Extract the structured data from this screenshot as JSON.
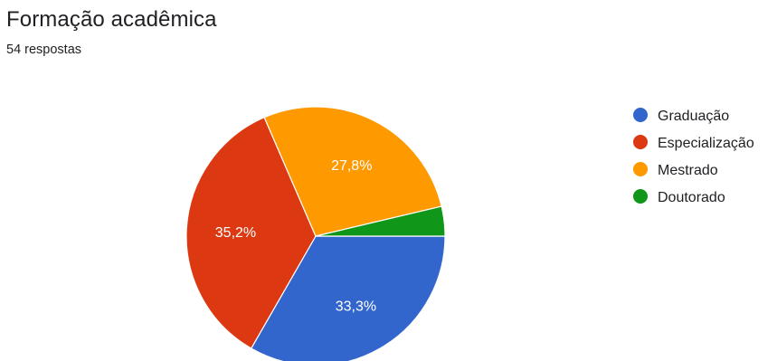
{
  "header": {
    "title": "Formação acadêmica",
    "subtitle": "54 respostas"
  },
  "chart_data": {
    "type": "pie",
    "title": "Formação acadêmica",
    "legend_position": "right",
    "slices": [
      {
        "label": "Graduação",
        "value": 33.3,
        "display": "33,3%",
        "color": "#3366cc"
      },
      {
        "label": "Especialização",
        "value": 35.2,
        "display": "35,2%",
        "color": "#dc3912"
      },
      {
        "label": "Mestrado",
        "value": 27.8,
        "display": "27,8%",
        "color": "#ff9900"
      },
      {
        "label": "Doutorado",
        "value": 3.7,
        "display": "",
        "color": "#109618"
      }
    ]
  }
}
